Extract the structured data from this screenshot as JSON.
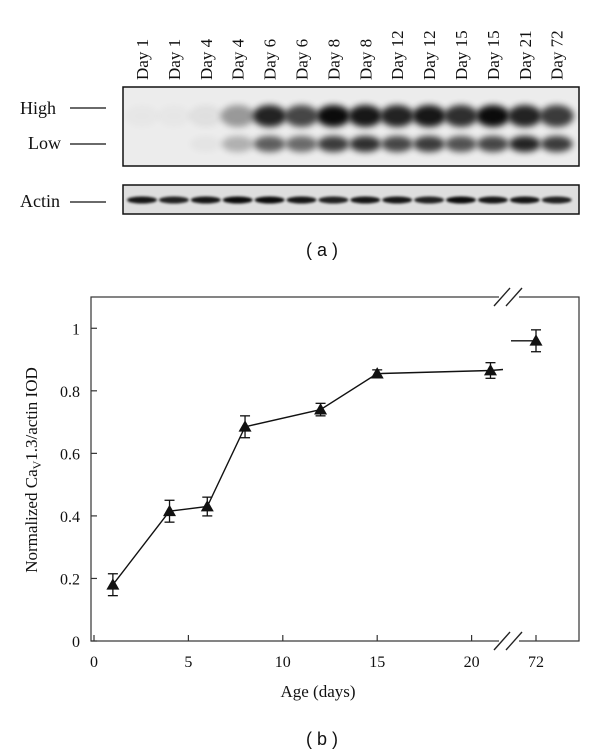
{
  "panel_a": {
    "caption": "( a )",
    "lane_labels": [
      "Day 1",
      "Day 1",
      "Day 4",
      "Day 4",
      "Day 6",
      "Day 6",
      "Day 8",
      "Day 8",
      "Day 12",
      "Day 12",
      "Day 15",
      "Day 15",
      "Day 21",
      "Day 72"
    ],
    "row_labels": {
      "high": "High",
      "low": "Low",
      "actin": "Actin"
    }
  },
  "panel_b": {
    "caption": "( b )"
  },
  "chart_data": {
    "type": "line",
    "title": "",
    "xlabel": "Age (days)",
    "ylabel_prefix": "Normalized Ca",
    "ylabel_sub": "V",
    "ylabel_suffix": "1.3/actin IOD",
    "x_axis_break": true,
    "xlim": [
      0,
      25
    ],
    "ylim": [
      0,
      1.1
    ],
    "x_ticks": [
      0,
      5,
      10,
      15,
      20
    ],
    "x_tick_labels": [
      "0",
      "5",
      "10",
      "15",
      "20"
    ],
    "x_break_tick_label": "72",
    "y_ticks": [
      0,
      0.2,
      0.4,
      0.6,
      0.8,
      1
    ],
    "y_tick_labels": [
      "0",
      "0.2",
      "0.4",
      "0.6",
      "0.8",
      "1"
    ],
    "grid": false,
    "series": [
      {
        "marker": "triangle",
        "color": "#111111",
        "points": [
          {
            "x": 1,
            "y": 0.18,
            "err": 0.035
          },
          {
            "x": 4,
            "y": 0.415,
            "err": 0.035
          },
          {
            "x": 6,
            "y": 0.43,
            "err": 0.03
          },
          {
            "x": 8,
            "y": 0.685,
            "err": 0.035
          },
          {
            "x": 12,
            "y": 0.74,
            "err": 0.02
          },
          {
            "x": 15,
            "y": 0.855,
            "err": 0.012
          },
          {
            "x": 21,
            "y": 0.865,
            "err": 0.025
          },
          {
            "x": 72,
            "y": 0.96,
            "err": 0.035
          }
        ]
      }
    ]
  }
}
